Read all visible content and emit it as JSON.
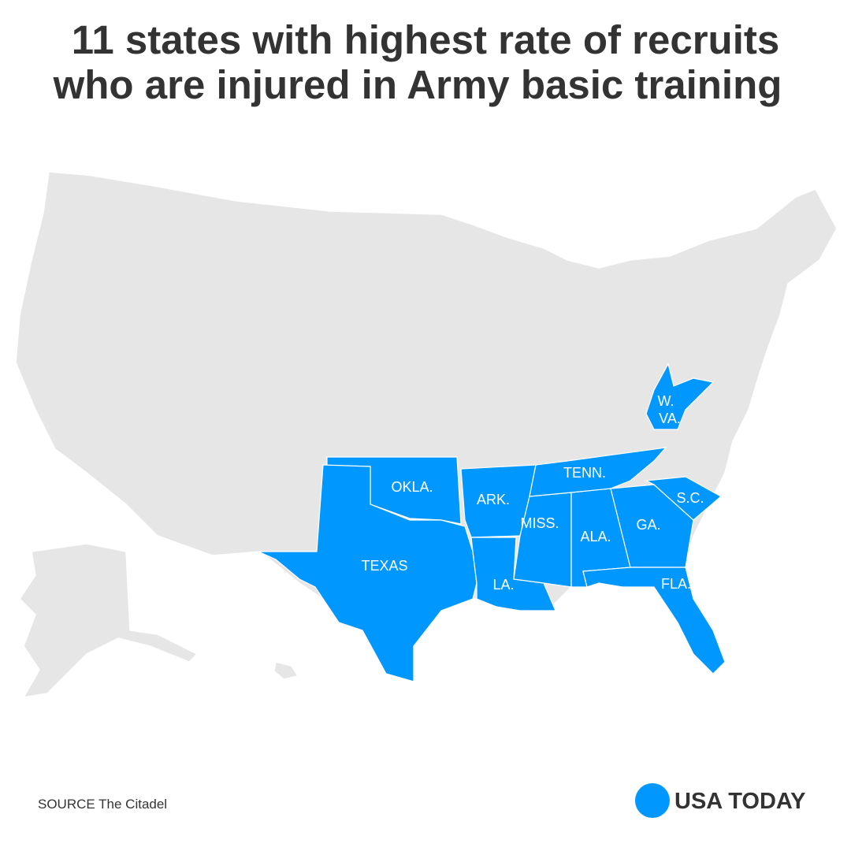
{
  "header": {
    "title_lines": [
      "11 states with highest rate of recruits",
      "who are injured in Army basic training"
    ]
  },
  "states": [
    "W.",
    "VA.",
    "OKLA.",
    "ARK.",
    "TENN.",
    "S.C.",
    "MISS.",
    "ALA.",
    "GA.",
    "TEXAS",
    "LA.",
    "FLA."
  ],
  "footer": {
    "source": "SOURCE The Citadel",
    "brand": "USA TODAY"
  }
}
